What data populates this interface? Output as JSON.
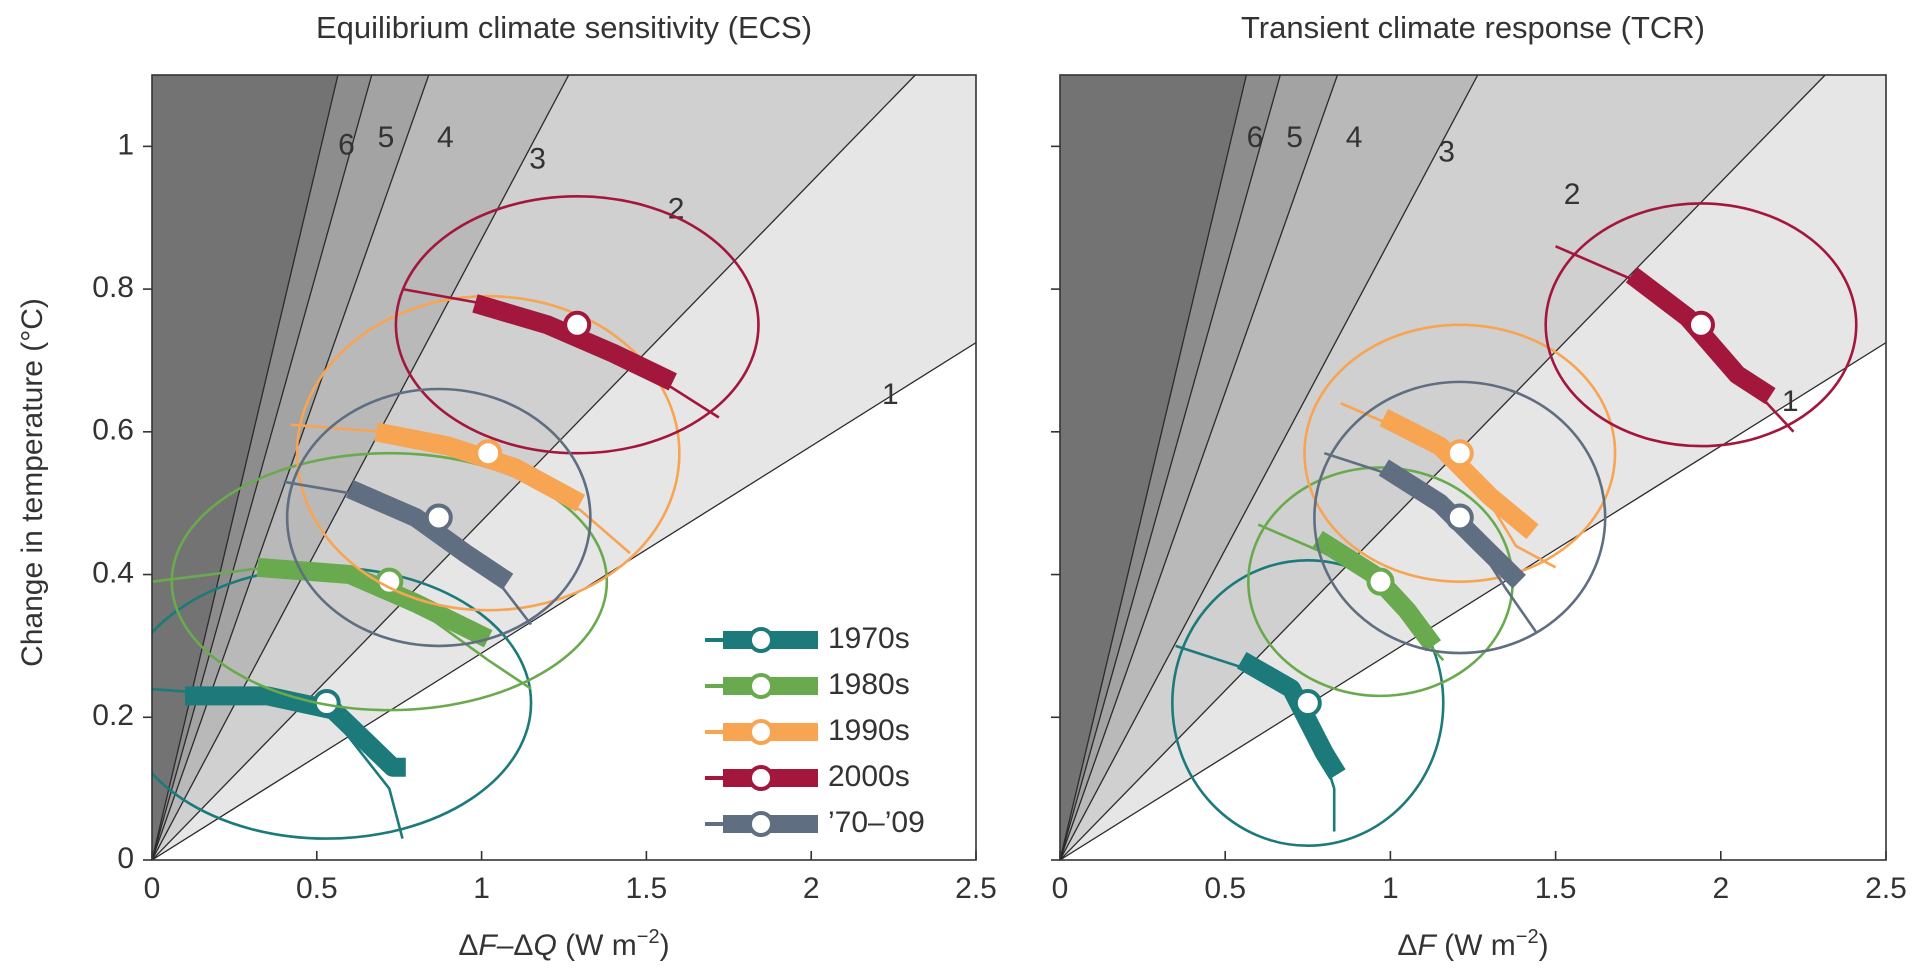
{
  "chart_data": [
    {
      "type": "scatter",
      "title": "Equilibrium climate sensitivity (ECS)",
      "xlabel": "ΔF–ΔQ (W m⁻²)",
      "xlabel_parts": [
        "Δ",
        "F",
        "–Δ",
        "Q",
        " (W m",
        "−2",
        ")"
      ],
      "ylabel": "Change in temperature (°C)",
      "xlim": [
        0,
        2.5
      ],
      "ylim": [
        0,
        1.1
      ],
      "xticks": [
        0,
        0.5,
        1,
        1.5,
        2,
        2.5
      ],
      "xtick_labels": [
        "0",
        "0.5",
        "1",
        "1.5",
        "2",
        "2.5"
      ],
      "yticks": [
        0,
        0.2,
        0.4,
        0.6,
        0.8,
        1
      ],
      "ytick_labels": [
        "0",
        "0.2",
        "0.4",
        "0.6",
        "0.8",
        "1"
      ],
      "grid": false,
      "sensitivity_lines": [
        {
          "label": "1",
          "slope": 0.29,
          "label_at": [
            2.24,
            0.65
          ]
        },
        {
          "label": "2",
          "slope": 0.475,
          "label_at": [
            1.59,
            0.91
          ]
        },
        {
          "label": "3",
          "slope": 0.87,
          "label_at": [
            1.17,
            0.98
          ]
        },
        {
          "label": "4",
          "slope": 1.31,
          "label_at": [
            0.89,
            1.01
          ]
        },
        {
          "label": "5",
          "slope": 1.65,
          "label_at": [
            0.71,
            1.01
          ]
        },
        {
          "label": "6",
          "slope": 1.95,
          "label_at": [
            0.59,
            1.0
          ]
        }
      ],
      "series": [
        {
          "name": "1970s",
          "color": "#1d7a7a",
          "center": [
            0.53,
            0.22
          ],
          "ellipse_rx": 0.62,
          "ellipse_ry": 0.19,
          "thin_arc": [
            [
              -0.02,
              0.24
            ],
            [
              0.3,
              0.23
            ],
            [
              0.55,
              0.2
            ],
            [
              0.72,
              0.1
            ],
            [
              0.76,
              0.03
            ]
          ],
          "thick_arc": [
            [
              0.1,
              0.23
            ],
            [
              0.35,
              0.23
            ],
            [
              0.55,
              0.21
            ],
            [
              0.73,
              0.13
            ],
            [
              0.77,
              0.13
            ]
          ]
        },
        {
          "name": "1980s",
          "color": "#6aaa4e",
          "center": [
            0.72,
            0.39
          ],
          "ellipse_rx": 0.66,
          "ellipse_ry": 0.18,
          "thin_arc": [
            [
              0.0,
              0.39
            ],
            [
              0.35,
              0.41
            ],
            [
              0.72,
              0.38
            ],
            [
              1.02,
              0.28
            ],
            [
              1.15,
              0.24
            ]
          ],
          "thick_arc": [
            [
              0.32,
              0.41
            ],
            [
              0.6,
              0.4
            ],
            [
              0.8,
              0.36
            ],
            [
              1.02,
              0.31
            ]
          ]
        },
        {
          "name": "1990s",
          "color": "#f7a453",
          "center": [
            1.02,
            0.57
          ],
          "ellipse_rx": 0.58,
          "ellipse_ry": 0.22,
          "thin_arc": [
            [
              0.42,
              0.61
            ],
            [
              0.7,
              0.6
            ],
            [
              1.02,
              0.56
            ],
            [
              1.3,
              0.49
            ],
            [
              1.45,
              0.43
            ]
          ],
          "thick_arc": [
            [
              0.68,
              0.6
            ],
            [
              0.9,
              0.58
            ],
            [
              1.1,
              0.55
            ],
            [
              1.3,
              0.5
            ]
          ]
        },
        {
          "name": "2000s",
          "color": "#a3173d",
          "center": [
            1.29,
            0.75
          ],
          "ellipse_rx": 0.55,
          "ellipse_ry": 0.18,
          "thin_arc": [
            [
              0.76,
              0.8
            ],
            [
              1.0,
              0.78
            ],
            [
              1.29,
              0.74
            ],
            [
              1.55,
              0.67
            ],
            [
              1.72,
              0.62
            ]
          ],
          "thick_arc": [
            [
              0.98,
              0.78
            ],
            [
              1.2,
              0.75
            ],
            [
              1.4,
              0.71
            ],
            [
              1.58,
              0.67
            ]
          ]
        },
        {
          "name": "’70–’09",
          "color": "#5f6e80",
          "center": [
            0.87,
            0.48
          ],
          "ellipse_rx": 0.46,
          "ellipse_ry": 0.18,
          "thin_arc": [
            [
              0.4,
              0.53
            ],
            [
              0.65,
              0.51
            ],
            [
              0.87,
              0.47
            ],
            [
              1.05,
              0.39
            ],
            [
              1.15,
              0.33
            ]
          ],
          "thick_arc": [
            [
              0.6,
              0.52
            ],
            [
              0.8,
              0.48
            ],
            [
              0.95,
              0.43
            ],
            [
              1.08,
              0.39
            ]
          ]
        }
      ],
      "legend": {
        "placement": "bottom-right",
        "entries": [
          "1970s",
          "1980s",
          "1990s",
          "2000s",
          "’70–’09"
        ]
      }
    },
    {
      "type": "scatter",
      "title": "Transient climate response (TCR)",
      "xlabel": "ΔF (W m⁻²)",
      "xlabel_parts": [
        "Δ",
        "F",
        "",
        "",
        " (W m",
        "−2",
        ")"
      ],
      "ylabel": "",
      "xlim": [
        0,
        2.5
      ],
      "ylim": [
        0,
        1.1
      ],
      "xticks": [
        0,
        0.5,
        1,
        1.5,
        2,
        2.5
      ],
      "xtick_labels": [
        "0",
        "0.5",
        "1",
        "1.5",
        "2",
        "2.5"
      ],
      "yticks": [
        0,
        0.2,
        0.4,
        0.6,
        0.8,
        1
      ],
      "ytick_labels": [],
      "grid": false,
      "sensitivity_lines": [
        {
          "label": "1",
          "slope": 0.29,
          "label_at": [
            2.21,
            0.64
          ]
        },
        {
          "label": "2",
          "slope": 0.475,
          "label_at": [
            1.55,
            0.93
          ]
        },
        {
          "label": "3",
          "slope": 0.87,
          "label_at": [
            1.17,
            0.99
          ]
        },
        {
          "label": "4",
          "slope": 1.31,
          "label_at": [
            0.89,
            1.01
          ]
        },
        {
          "label": "5",
          "slope": 1.65,
          "label_at": [
            0.71,
            1.01
          ]
        },
        {
          "label": "6",
          "slope": 1.95,
          "label_at": [
            0.59,
            1.01
          ]
        }
      ],
      "series": [
        {
          "name": "1970s",
          "color": "#1d7a7a",
          "center": [
            0.75,
            0.22
          ],
          "ellipse_rx": 0.41,
          "ellipse_ry": 0.2,
          "thin_arc": [
            [
              0.35,
              0.3
            ],
            [
              0.55,
              0.27
            ],
            [
              0.75,
              0.22
            ],
            [
              0.83,
              0.1
            ],
            [
              0.83,
              0.04
            ]
          ],
          "thick_arc": [
            [
              0.55,
              0.28
            ],
            [
              0.7,
              0.24
            ],
            [
              0.8,
              0.15
            ],
            [
              0.84,
              0.12
            ]
          ]
        },
        {
          "name": "1980s",
          "color": "#6aaa4e",
          "center": [
            0.97,
            0.39
          ],
          "ellipse_rx": 0.4,
          "ellipse_ry": 0.16,
          "thin_arc": [
            [
              0.6,
              0.47
            ],
            [
              0.8,
              0.43
            ],
            [
              0.97,
              0.39
            ],
            [
              1.12,
              0.3
            ],
            [
              1.16,
              0.28
            ]
          ],
          "thick_arc": [
            [
              0.78,
              0.45
            ],
            [
              0.95,
              0.4
            ],
            [
              1.05,
              0.35
            ],
            [
              1.13,
              0.3
            ]
          ]
        },
        {
          "name": "1990s",
          "color": "#f7a453",
          "center": [
            1.21,
            0.57
          ],
          "ellipse_rx": 0.47,
          "ellipse_ry": 0.18,
          "thin_arc": [
            [
              0.85,
              0.64
            ],
            [
              1.05,
              0.6
            ],
            [
              1.21,
              0.57
            ],
            [
              1.38,
              0.44
            ],
            [
              1.5,
              0.41
            ]
          ],
          "thick_arc": [
            [
              0.98,
              0.62
            ],
            [
              1.15,
              0.58
            ],
            [
              1.3,
              0.51
            ],
            [
              1.43,
              0.46
            ]
          ]
        },
        {
          "name": "2000s",
          "color": "#a3173d",
          "center": [
            1.94,
            0.75
          ],
          "ellipse_rx": 0.47,
          "ellipse_ry": 0.17,
          "thin_arc": [
            [
              1.5,
              0.86
            ],
            [
              1.75,
              0.81
            ],
            [
              1.94,
              0.75
            ],
            [
              2.1,
              0.66
            ],
            [
              2.22,
              0.6
            ]
          ],
          "thick_arc": [
            [
              1.73,
              0.82
            ],
            [
              1.9,
              0.76
            ],
            [
              2.05,
              0.68
            ],
            [
              2.15,
              0.65
            ]
          ]
        },
        {
          "name": "’70–’09",
          "color": "#5f6e80",
          "center": [
            1.21,
            0.48
          ],
          "ellipse_rx": 0.44,
          "ellipse_ry": 0.19,
          "thin_arc": [
            [
              0.8,
              0.57
            ],
            [
              1.0,
              0.54
            ],
            [
              1.21,
              0.48
            ],
            [
              1.35,
              0.38
            ],
            [
              1.44,
              0.32
            ]
          ],
          "thick_arc": [
            [
              0.98,
              0.55
            ],
            [
              1.15,
              0.5
            ],
            [
              1.28,
              0.44
            ],
            [
              1.39,
              0.39
            ]
          ]
        }
      ],
      "legend": null
    }
  ]
}
